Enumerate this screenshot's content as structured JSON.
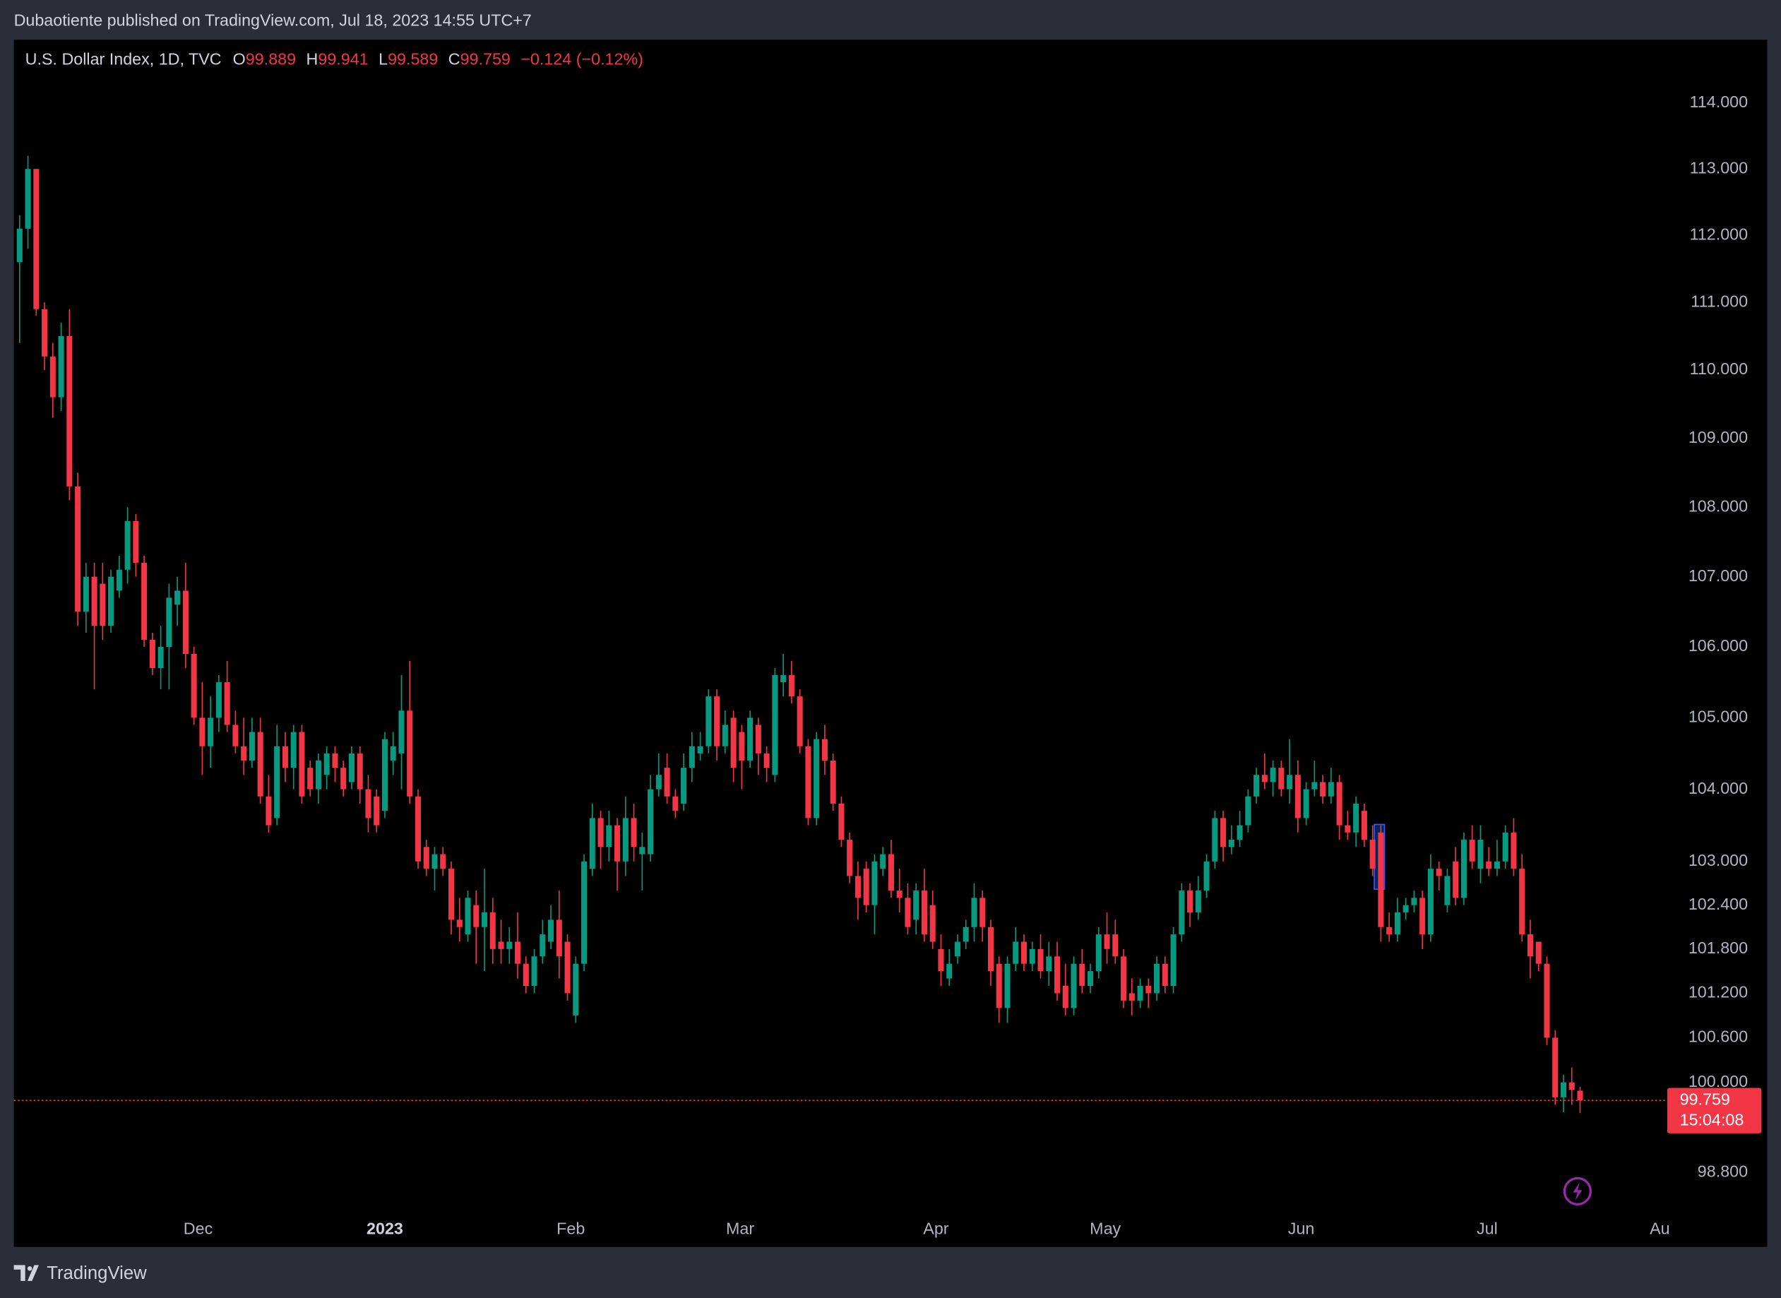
{
  "publisher": "Dubaotiente published on TradingView.com, Jul 18, 2023 14:55 UTC+7",
  "brand": "TradingView",
  "chart_data": {
    "type": "candlestick",
    "title": "U.S. Dollar Index, 1D, TVC",
    "ohlc_letters": [
      "O",
      "H",
      "L",
      "C"
    ],
    "change": "−0.124 (−0.12%)",
    "countdown": "15:04:08",
    "up_color": "#089981",
    "down_color": "#f23645",
    "log": true,
    "ylim": [
      98.27,
      114.97
    ],
    "yticks": [
      {
        "value": 98.8,
        "label": "98.800"
      },
      {
        "value": 100,
        "label": "100.000"
      },
      {
        "value": 100.6,
        "label": "100.600"
      },
      {
        "value": 101.2,
        "label": "101.200"
      },
      {
        "value": 101.8,
        "label": "101.800"
      },
      {
        "value": 102.4,
        "label": "102.400"
      },
      {
        "value": 103,
        "label": "103.000"
      },
      {
        "value": 104,
        "label": "104.000"
      },
      {
        "value": 105,
        "label": "105.000"
      },
      {
        "value": 106,
        "label": "106.000"
      },
      {
        "value": 107,
        "label": "107.000"
      },
      {
        "value": 108,
        "label": "108.000"
      },
      {
        "value": 109,
        "label": "109.000"
      },
      {
        "value": 110,
        "label": "110.000"
      },
      {
        "value": 111,
        "label": "111.000"
      },
      {
        "value": 112,
        "label": "112.000"
      },
      {
        "value": 113,
        "label": "113.000"
      },
      {
        "value": 114,
        "label": "114.000"
      }
    ],
    "xlim": [
      -0.7,
      198.5
    ],
    "xticks": [
      {
        "value": 21.5,
        "label": "Dec"
      },
      {
        "value": 44,
        "label": "2023"
      },
      {
        "value": 66.4,
        "label": "Feb"
      },
      {
        "value": 86.8,
        "label": "Mar"
      },
      {
        "value": 110.4,
        "label": "Apr"
      },
      {
        "value": 130.8,
        "label": "May"
      },
      {
        "value": 154.4,
        "label": "Jun"
      },
      {
        "value": 176.8,
        "label": "Jul"
      },
      {
        "value": 197.6,
        "label": "Au"
      }
    ],
    "candles": [
      [
        111.6,
        112.3,
        110.4,
        112.1
      ],
      [
        112.1,
        113.2,
        111.8,
        113.0
      ],
      [
        113.0,
        113.0,
        110.8,
        110.9
      ],
      [
        110.9,
        111.0,
        110.0,
        110.2
      ],
      [
        110.2,
        110.4,
        109.3,
        109.6
      ],
      [
        109.6,
        110.7,
        109.4,
        110.5
      ],
      [
        110.5,
        110.9,
        108.1,
        108.3
      ],
      [
        108.3,
        108.5,
        106.3,
        106.5
      ],
      [
        106.5,
        107.2,
        106.2,
        107.0
      ],
      [
        107.0,
        107.2,
        105.4,
        106.3
      ],
      [
        106.9,
        107.2,
        106.1,
        106.3
      ],
      [
        106.3,
        107.1,
        106.2,
        107.0
      ],
      [
        106.8,
        107.3,
        106.7,
        107.1
      ],
      [
        107.1,
        108.0,
        106.9,
        107.8
      ],
      [
        107.8,
        107.9,
        107.0,
        107.2
      ],
      [
        107.2,
        107.3,
        106.0,
        106.1
      ],
      [
        106.1,
        106.2,
        105.6,
        105.7
      ],
      [
        105.7,
        106.3,
        105.4,
        106.0
      ],
      [
        106.0,
        106.9,
        105.4,
        106.7
      ],
      [
        106.6,
        107.0,
        106.3,
        106.8
      ],
      [
        106.8,
        107.2,
        105.7,
        105.9
      ],
      [
        105.9,
        106.0,
        104.9,
        105.0
      ],
      [
        105.0,
        105.5,
        104.2,
        104.6
      ],
      [
        104.6,
        105.3,
        104.3,
        105.0
      ],
      [
        105.0,
        105.6,
        104.8,
        105.5
      ],
      [
        105.5,
        105.8,
        104.8,
        104.9
      ],
      [
        104.9,
        105.1,
        104.5,
        104.6
      ],
      [
        104.6,
        105.0,
        104.2,
        104.4
      ],
      [
        104.4,
        105.0,
        104.3,
        104.8
      ],
      [
        104.8,
        105.0,
        103.8,
        103.9
      ],
      [
        103.9,
        104.2,
        103.4,
        103.5
      ],
      [
        103.6,
        104.9,
        103.5,
        104.6
      ],
      [
        104.6,
        104.8,
        104.1,
        104.3
      ],
      [
        104.3,
        104.9,
        104.0,
        104.8
      ],
      [
        104.8,
        104.9,
        103.8,
        103.9
      ],
      [
        104.3,
        104.4,
        103.9,
        104.0
      ],
      [
        104.0,
        104.5,
        103.8,
        104.4
      ],
      [
        104.2,
        104.6,
        104.0,
        104.5
      ],
      [
        104.5,
        104.6,
        104.1,
        104.3
      ],
      [
        104.3,
        104.4,
        103.9,
        104.0
      ],
      [
        104.1,
        104.6,
        104.0,
        104.5
      ],
      [
        104.5,
        104.6,
        103.8,
        104.0
      ],
      [
        104.0,
        104.2,
        103.4,
        103.6
      ],
      [
        103.9,
        104.0,
        103.4,
        103.5
      ],
      [
        103.7,
        104.8,
        103.6,
        104.7
      ],
      [
        104.4,
        104.8,
        104.2,
        104.6
      ],
      [
        104.5,
        105.6,
        104.0,
        105.1
      ],
      [
        105.1,
        105.8,
        103.8,
        103.9
      ],
      [
        103.9,
        104.0,
        102.9,
        103.0
      ],
      [
        103.2,
        103.3,
        102.8,
        102.9
      ],
      [
        102.9,
        103.2,
        102.6,
        103.1
      ],
      [
        103.1,
        103.2,
        102.8,
        102.9
      ],
      [
        102.9,
        103.0,
        102.0,
        102.2
      ],
      [
        102.2,
        102.5,
        101.9,
        102.1
      ],
      [
        102.0,
        102.6,
        101.9,
        102.5
      ],
      [
        102.4,
        102.6,
        101.6,
        102.1
      ],
      [
        102.1,
        102.9,
        101.5,
        102.3
      ],
      [
        102.3,
        102.5,
        101.6,
        101.8
      ],
      [
        101.9,
        102.2,
        101.6,
        101.8
      ],
      [
        101.8,
        102.1,
        101.6,
        101.9
      ],
      [
        101.9,
        102.3,
        101.4,
        101.6
      ],
      [
        101.6,
        101.7,
        101.2,
        101.3
      ],
      [
        101.3,
        101.8,
        101.2,
        101.7
      ],
      [
        101.7,
        102.2,
        101.6,
        102.0
      ],
      [
        101.9,
        102.4,
        101.8,
        102.2
      ],
      [
        102.2,
        102.6,
        101.4,
        101.7
      ],
      [
        101.9,
        102.0,
        101.1,
        101.2
      ],
      [
        100.9,
        101.7,
        100.8,
        101.6
      ],
      [
        101.6,
        103.1,
        101.5,
        103.0
      ],
      [
        102.9,
        103.8,
        102.8,
        103.6
      ],
      [
        103.6,
        103.7,
        102.9,
        103.2
      ],
      [
        103.2,
        103.7,
        103.0,
        103.5
      ],
      [
        103.5,
        103.6,
        102.6,
        103.0
      ],
      [
        103.0,
        103.9,
        102.8,
        103.6
      ],
      [
        103.6,
        103.8,
        103.0,
        103.2
      ],
      [
        103.1,
        103.4,
        102.6,
        103.2
      ],
      [
        103.1,
        104.2,
        103.0,
        104.0
      ],
      [
        104.0,
        104.5,
        103.9,
        104.2
      ],
      [
        104.3,
        104.5,
        103.8,
        103.9
      ],
      [
        103.9,
        104.0,
        103.6,
        103.7
      ],
      [
        103.8,
        104.5,
        103.7,
        104.3
      ],
      [
        104.3,
        104.8,
        104.1,
        104.6
      ],
      [
        104.5,
        104.8,
        104.4,
        104.6
      ],
      [
        104.6,
        105.4,
        104.5,
        105.3
      ],
      [
        105.3,
        105.4,
        104.4,
        104.6
      ],
      [
        104.6,
        105.1,
        104.5,
        104.9
      ],
      [
        105.0,
        105.1,
        104.1,
        104.3
      ],
      [
        104.8,
        104.9,
        104.0,
        104.4
      ],
      [
        104.4,
        105.1,
        104.3,
        105.0
      ],
      [
        104.9,
        105.0,
        104.2,
        104.5
      ],
      [
        104.5,
        104.6,
        104.1,
        104.3
      ],
      [
        104.2,
        105.7,
        104.1,
        105.6
      ],
      [
        105.5,
        105.9,
        105.3,
        105.6
      ],
      [
        105.6,
        105.8,
        105.2,
        105.3
      ],
      [
        105.3,
        105.4,
        104.5,
        104.6
      ],
      [
        104.6,
        104.7,
        103.5,
        103.6
      ],
      [
        103.6,
        104.8,
        103.5,
        104.7
      ],
      [
        104.7,
        104.9,
        104.2,
        104.4
      ],
      [
        104.4,
        104.5,
        103.7,
        103.8
      ],
      [
        103.8,
        103.9,
        103.2,
        103.3
      ],
      [
        103.3,
        103.4,
        102.7,
        102.8
      ],
      [
        102.8,
        103.0,
        102.2,
        102.5
      ],
      [
        102.9,
        103.0,
        102.3,
        102.4
      ],
      [
        102.4,
        103.1,
        102.0,
        103.0
      ],
      [
        102.9,
        103.2,
        102.8,
        103.1
      ],
      [
        103.1,
        103.3,
        102.5,
        102.6
      ],
      [
        102.6,
        102.9,
        102.3,
        102.5
      ],
      [
        102.5,
        102.7,
        102.0,
        102.1
      ],
      [
        102.2,
        102.7,
        102.0,
        102.6
      ],
      [
        102.6,
        102.9,
        101.9,
        102.0
      ],
      [
        102.4,
        102.6,
        101.8,
        101.9
      ],
      [
        101.8,
        102.0,
        101.3,
        101.5
      ],
      [
        101.4,
        101.8,
        101.3,
        101.6
      ],
      [
        101.7,
        102.0,
        101.6,
        101.9
      ],
      [
        101.9,
        102.2,
        101.8,
        102.1
      ],
      [
        102.1,
        102.7,
        101.9,
        102.5
      ],
      [
        102.5,
        102.6,
        101.9,
        102.1
      ],
      [
        102.1,
        102.2,
        101.3,
        101.5
      ],
      [
        101.6,
        101.7,
        100.8,
        101.0
      ],
      [
        101.0,
        101.7,
        100.8,
        101.6
      ],
      [
        101.6,
        102.1,
        101.5,
        101.9
      ],
      [
        101.9,
        102.0,
        101.5,
        101.6
      ],
      [
        101.6,
        101.9,
        101.5,
        101.8
      ],
      [
        101.8,
        102.0,
        101.4,
        101.5
      ],
      [
        101.5,
        101.9,
        101.3,
        101.7
      ],
      [
        101.7,
        101.9,
        101.1,
        101.2
      ],
      [
        101.3,
        101.6,
        100.9,
        101.0
      ],
      [
        101.0,
        101.7,
        100.9,
        101.6
      ],
      [
        101.6,
        101.8,
        101.2,
        101.3
      ],
      [
        101.3,
        101.6,
        101.2,
        101.5
      ],
      [
        101.5,
        102.1,
        101.4,
        102.0
      ],
      [
        102.0,
        102.3,
        101.6,
        101.8
      ],
      [
        102.0,
        102.2,
        101.6,
        101.7
      ],
      [
        101.7,
        101.8,
        101.0,
        101.1
      ],
      [
        101.2,
        101.4,
        100.9,
        101.1
      ],
      [
        101.1,
        101.4,
        101.0,
        101.3
      ],
      [
        101.3,
        101.4,
        101.0,
        101.2
      ],
      [
        101.2,
        101.7,
        101.1,
        101.6
      ],
      [
        101.6,
        101.7,
        101.2,
        101.3
      ],
      [
        101.3,
        102.1,
        101.2,
        102.0
      ],
      [
        102.0,
        102.7,
        101.9,
        102.6
      ],
      [
        102.6,
        102.7,
        102.1,
        102.3
      ],
      [
        102.3,
        102.8,
        102.2,
        102.6
      ],
      [
        102.6,
        103.1,
        102.5,
        103.0
      ],
      [
        103.0,
        103.7,
        102.9,
        103.6
      ],
      [
        103.6,
        103.7,
        103.0,
        103.2
      ],
      [
        103.2,
        103.5,
        103.1,
        103.3
      ],
      [
        103.3,
        103.7,
        103.2,
        103.5
      ],
      [
        103.5,
        104.0,
        103.4,
        103.9
      ],
      [
        103.9,
        104.3,
        103.8,
        104.2
      ],
      [
        104.2,
        104.5,
        104.0,
        104.1
      ],
      [
        104.1,
        104.4,
        103.9,
        104.3
      ],
      [
        104.3,
        104.4,
        103.9,
        104.0
      ],
      [
        104.0,
        104.7,
        103.8,
        104.2
      ],
      [
        104.2,
        104.4,
        103.4,
        103.6
      ],
      [
        103.6,
        104.1,
        103.5,
        104.0
      ],
      [
        104.0,
        104.4,
        103.9,
        104.1
      ],
      [
        104.1,
        104.2,
        103.8,
        103.9
      ],
      [
        103.9,
        104.3,
        103.8,
        104.1
      ],
      [
        104.1,
        104.2,
        103.3,
        103.5
      ],
      [
        103.5,
        103.7,
        103.3,
        103.4
      ],
      [
        103.4,
        103.9,
        103.2,
        103.8
      ],
      [
        103.7,
        103.8,
        103.2,
        103.3
      ],
      [
        103.3,
        103.5,
        102.8,
        102.9
      ],
      [
        103.4,
        103.5,
        101.9,
        102.1
      ],
      [
        102.1,
        102.3,
        101.9,
        102.0
      ],
      [
        102.0,
        102.5,
        101.9,
        102.3
      ],
      [
        102.3,
        102.5,
        102.2,
        102.4
      ],
      [
        102.4,
        102.6,
        102.3,
        102.5
      ],
      [
        102.5,
        102.6,
        101.8,
        102.0
      ],
      [
        102.0,
        103.1,
        101.9,
        102.9
      ],
      [
        102.9,
        103.0,
        102.6,
        102.8
      ],
      [
        102.4,
        102.9,
        102.3,
        102.8
      ],
      [
        103.0,
        103.2,
        102.4,
        102.5
      ],
      [
        102.5,
        103.4,
        102.4,
        103.3
      ],
      [
        103.3,
        103.5,
        102.9,
        103.0
      ],
      [
        102.9,
        103.5,
        102.7,
        103.3
      ],
      [
        103.0,
        103.2,
        102.8,
        102.9
      ],
      [
        102.9,
        103.3,
        102.8,
        103.0
      ],
      [
        103.0,
        103.5,
        102.9,
        103.4
      ],
      [
        103.4,
        103.6,
        102.8,
        102.9
      ],
      [
        102.9,
        103.1,
        101.9,
        102.0
      ],
      [
        102.0,
        102.2,
        101.4,
        101.7
      ],
      [
        101.9,
        101.9,
        101.5,
        101.6
      ],
      [
        101.6,
        101.7,
        100.5,
        100.6
      ],
      [
        100.6,
        100.7,
        99.7,
        99.8
      ],
      [
        99.8,
        100.1,
        99.6,
        100.0
      ],
      [
        100.0,
        100.2,
        99.7,
        99.9
      ],
      [
        99.889,
        99.941,
        99.589,
        99.759
      ]
    ]
  }
}
